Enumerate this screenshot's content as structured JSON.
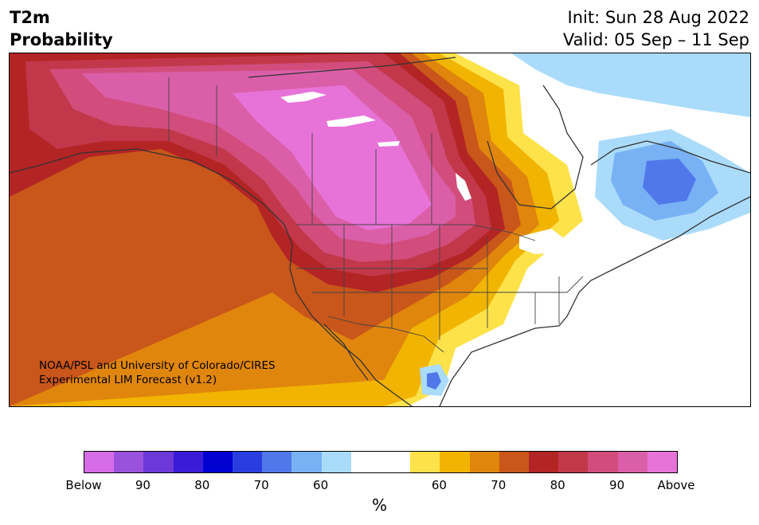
{
  "header": {
    "title_line1": "T2m",
    "title_line2": "Probability",
    "init": "Init: Sun 28 Aug 2022",
    "valid": "Valid: 05 Sep – 11 Sep"
  },
  "credit": {
    "line1": "NOAA/PSL and University of Colorado/CIRES",
    "line2": "Experimental LIM Forecast (v1.2)"
  },
  "colorbar": {
    "colors": [
      "#d66ce8",
      "#9a52dc",
      "#6c38d8",
      "#3a1cd8",
      "#0000d0",
      "#2a3ee0",
      "#5078ea",
      "#78b2f4",
      "#aadbfa",
      "#ffffff",
      "#ffffff",
      "#fde24a",
      "#f1b400",
      "#e0860c",
      "#c9561a",
      "#b32424",
      "#c2384a",
      "#d24d7c",
      "#da5fa8",
      "#e873d8"
    ],
    "tick_labels": [
      "Below",
      "90",
      "80",
      "70",
      "60",
      "60",
      "70",
      "80",
      "90",
      "Above"
    ],
    "unit": "%"
  }
}
